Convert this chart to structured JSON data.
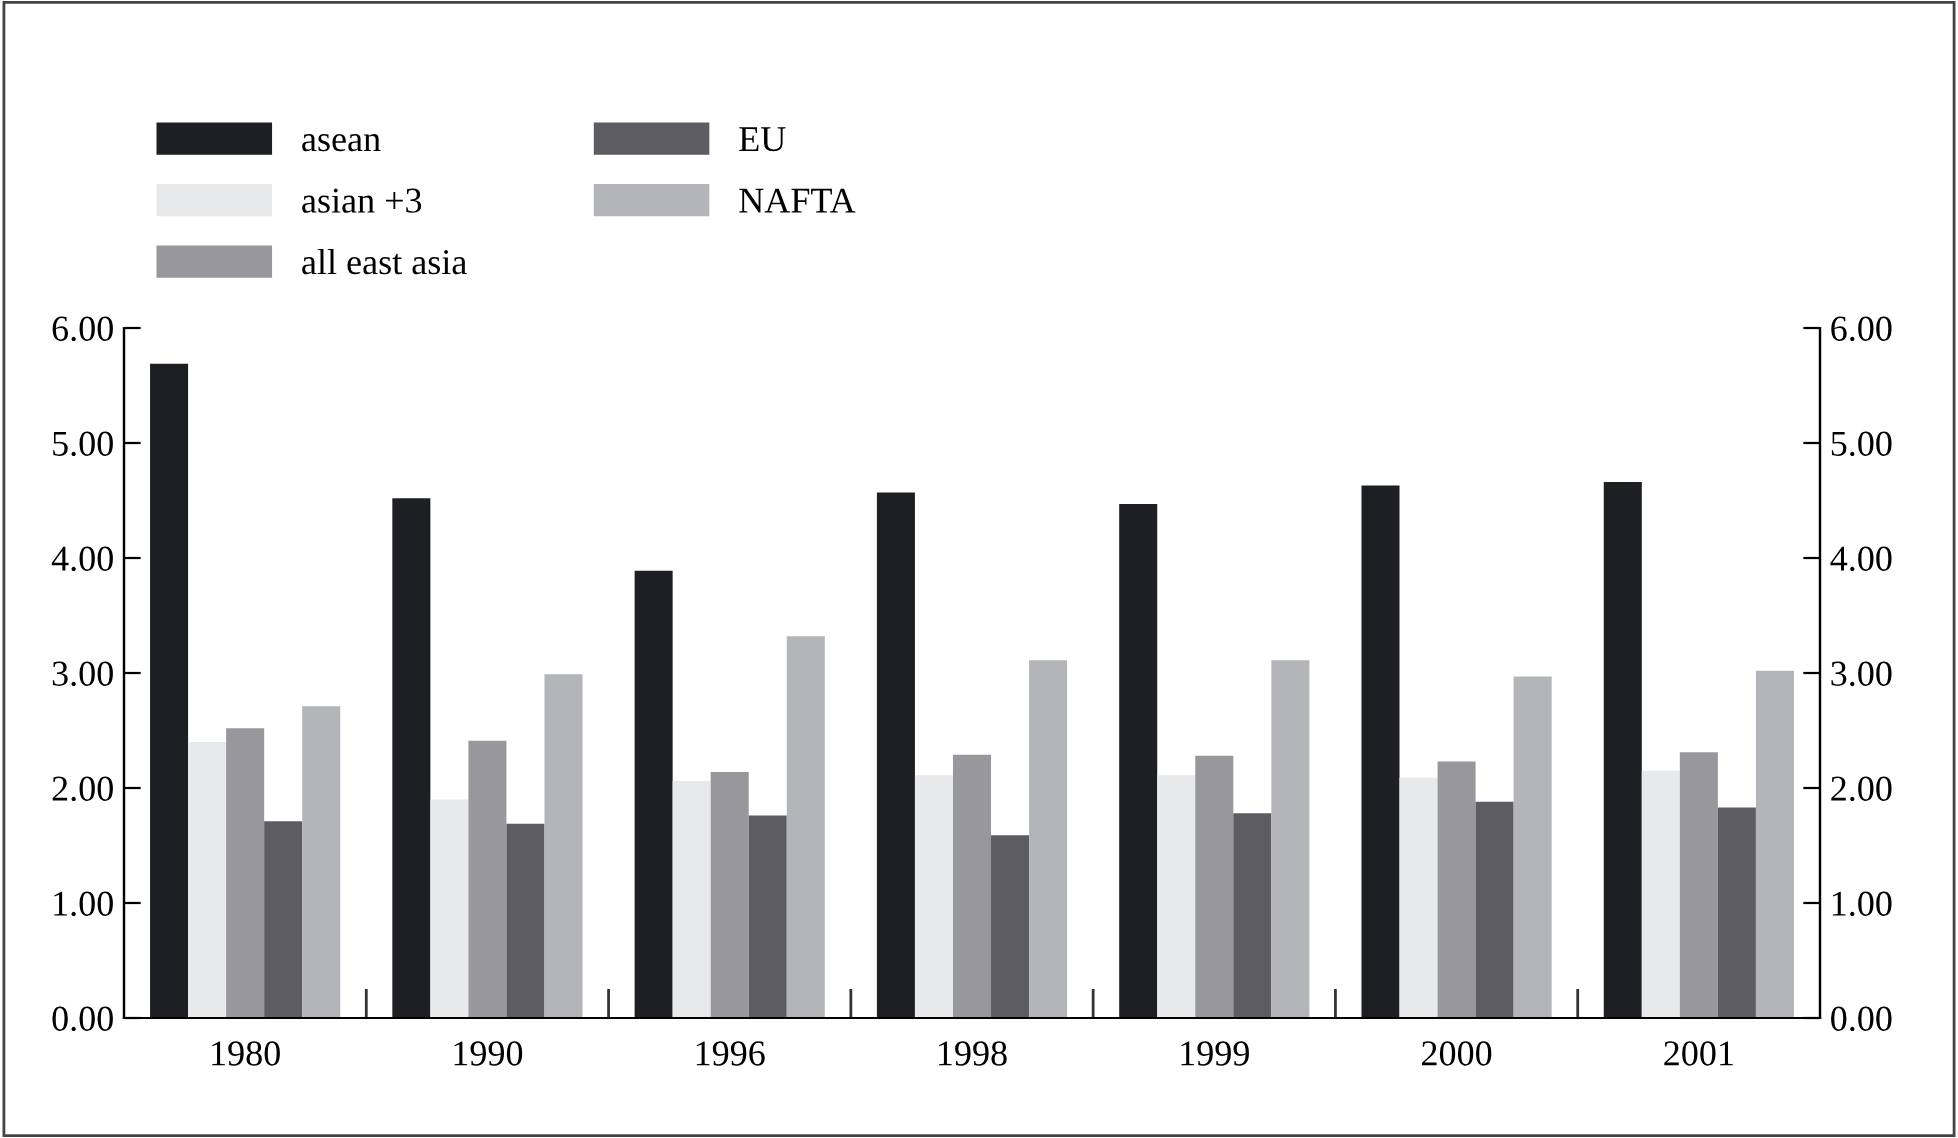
{
  "chart_data": {
    "type": "bar",
    "categories": [
      "1980",
      "1990",
      "1996",
      "1998",
      "1999",
      "2000",
      "2001"
    ],
    "series": [
      {
        "name": "asean",
        "color": "#1e1f23",
        "values": [
          5.69,
          4.52,
          3.89,
          4.57,
          4.47,
          4.63,
          4.66
        ]
      },
      {
        "name": "asian +3",
        "color": "#e8e9eb",
        "values": [
          2.4,
          1.9,
          2.06,
          2.11,
          2.11,
          2.09,
          2.15
        ]
      },
      {
        "name": "all east asia",
        "color": "#98979b",
        "values": [
          2.52,
          2.41,
          2.14,
          2.29,
          2.28,
          2.23,
          2.31
        ]
      },
      {
        "name": "EU",
        "color": "#5d5c62",
        "values": [
          1.71,
          1.69,
          1.76,
          1.59,
          1.78,
          1.88,
          1.83
        ]
      },
      {
        "name": "NAFTA",
        "color": "#b4b5b8",
        "values": [
          2.71,
          2.99,
          3.32,
          3.11,
          3.11,
          2.97,
          3.02
        ]
      }
    ],
    "ylim": [
      0,
      6
    ],
    "yticks": [
      {
        "value": 0,
        "label": "0.00"
      },
      {
        "value": 1,
        "label": "1.00"
      },
      {
        "value": 2,
        "label": "2.00"
      },
      {
        "value": 3,
        "label": "3.00"
      },
      {
        "value": 4,
        "label": "4.00"
      },
      {
        "value": 5,
        "label": "5.00"
      },
      {
        "value": 6,
        "label": "6.00"
      }
    ],
    "y2lim": [
      0,
      6
    ],
    "y2ticks": [
      {
        "value": 0,
        "label": "0.00"
      },
      {
        "value": 1,
        "label": "1.00"
      },
      {
        "value": 2,
        "label": "2.00"
      },
      {
        "value": 3,
        "label": "3.00"
      },
      {
        "value": 4,
        "label": "4.00"
      },
      {
        "value": 5,
        "label": "5.00"
      },
      {
        "value": 6,
        "label": "6.00"
      }
    ],
    "legend": "top left",
    "grid": false
  }
}
